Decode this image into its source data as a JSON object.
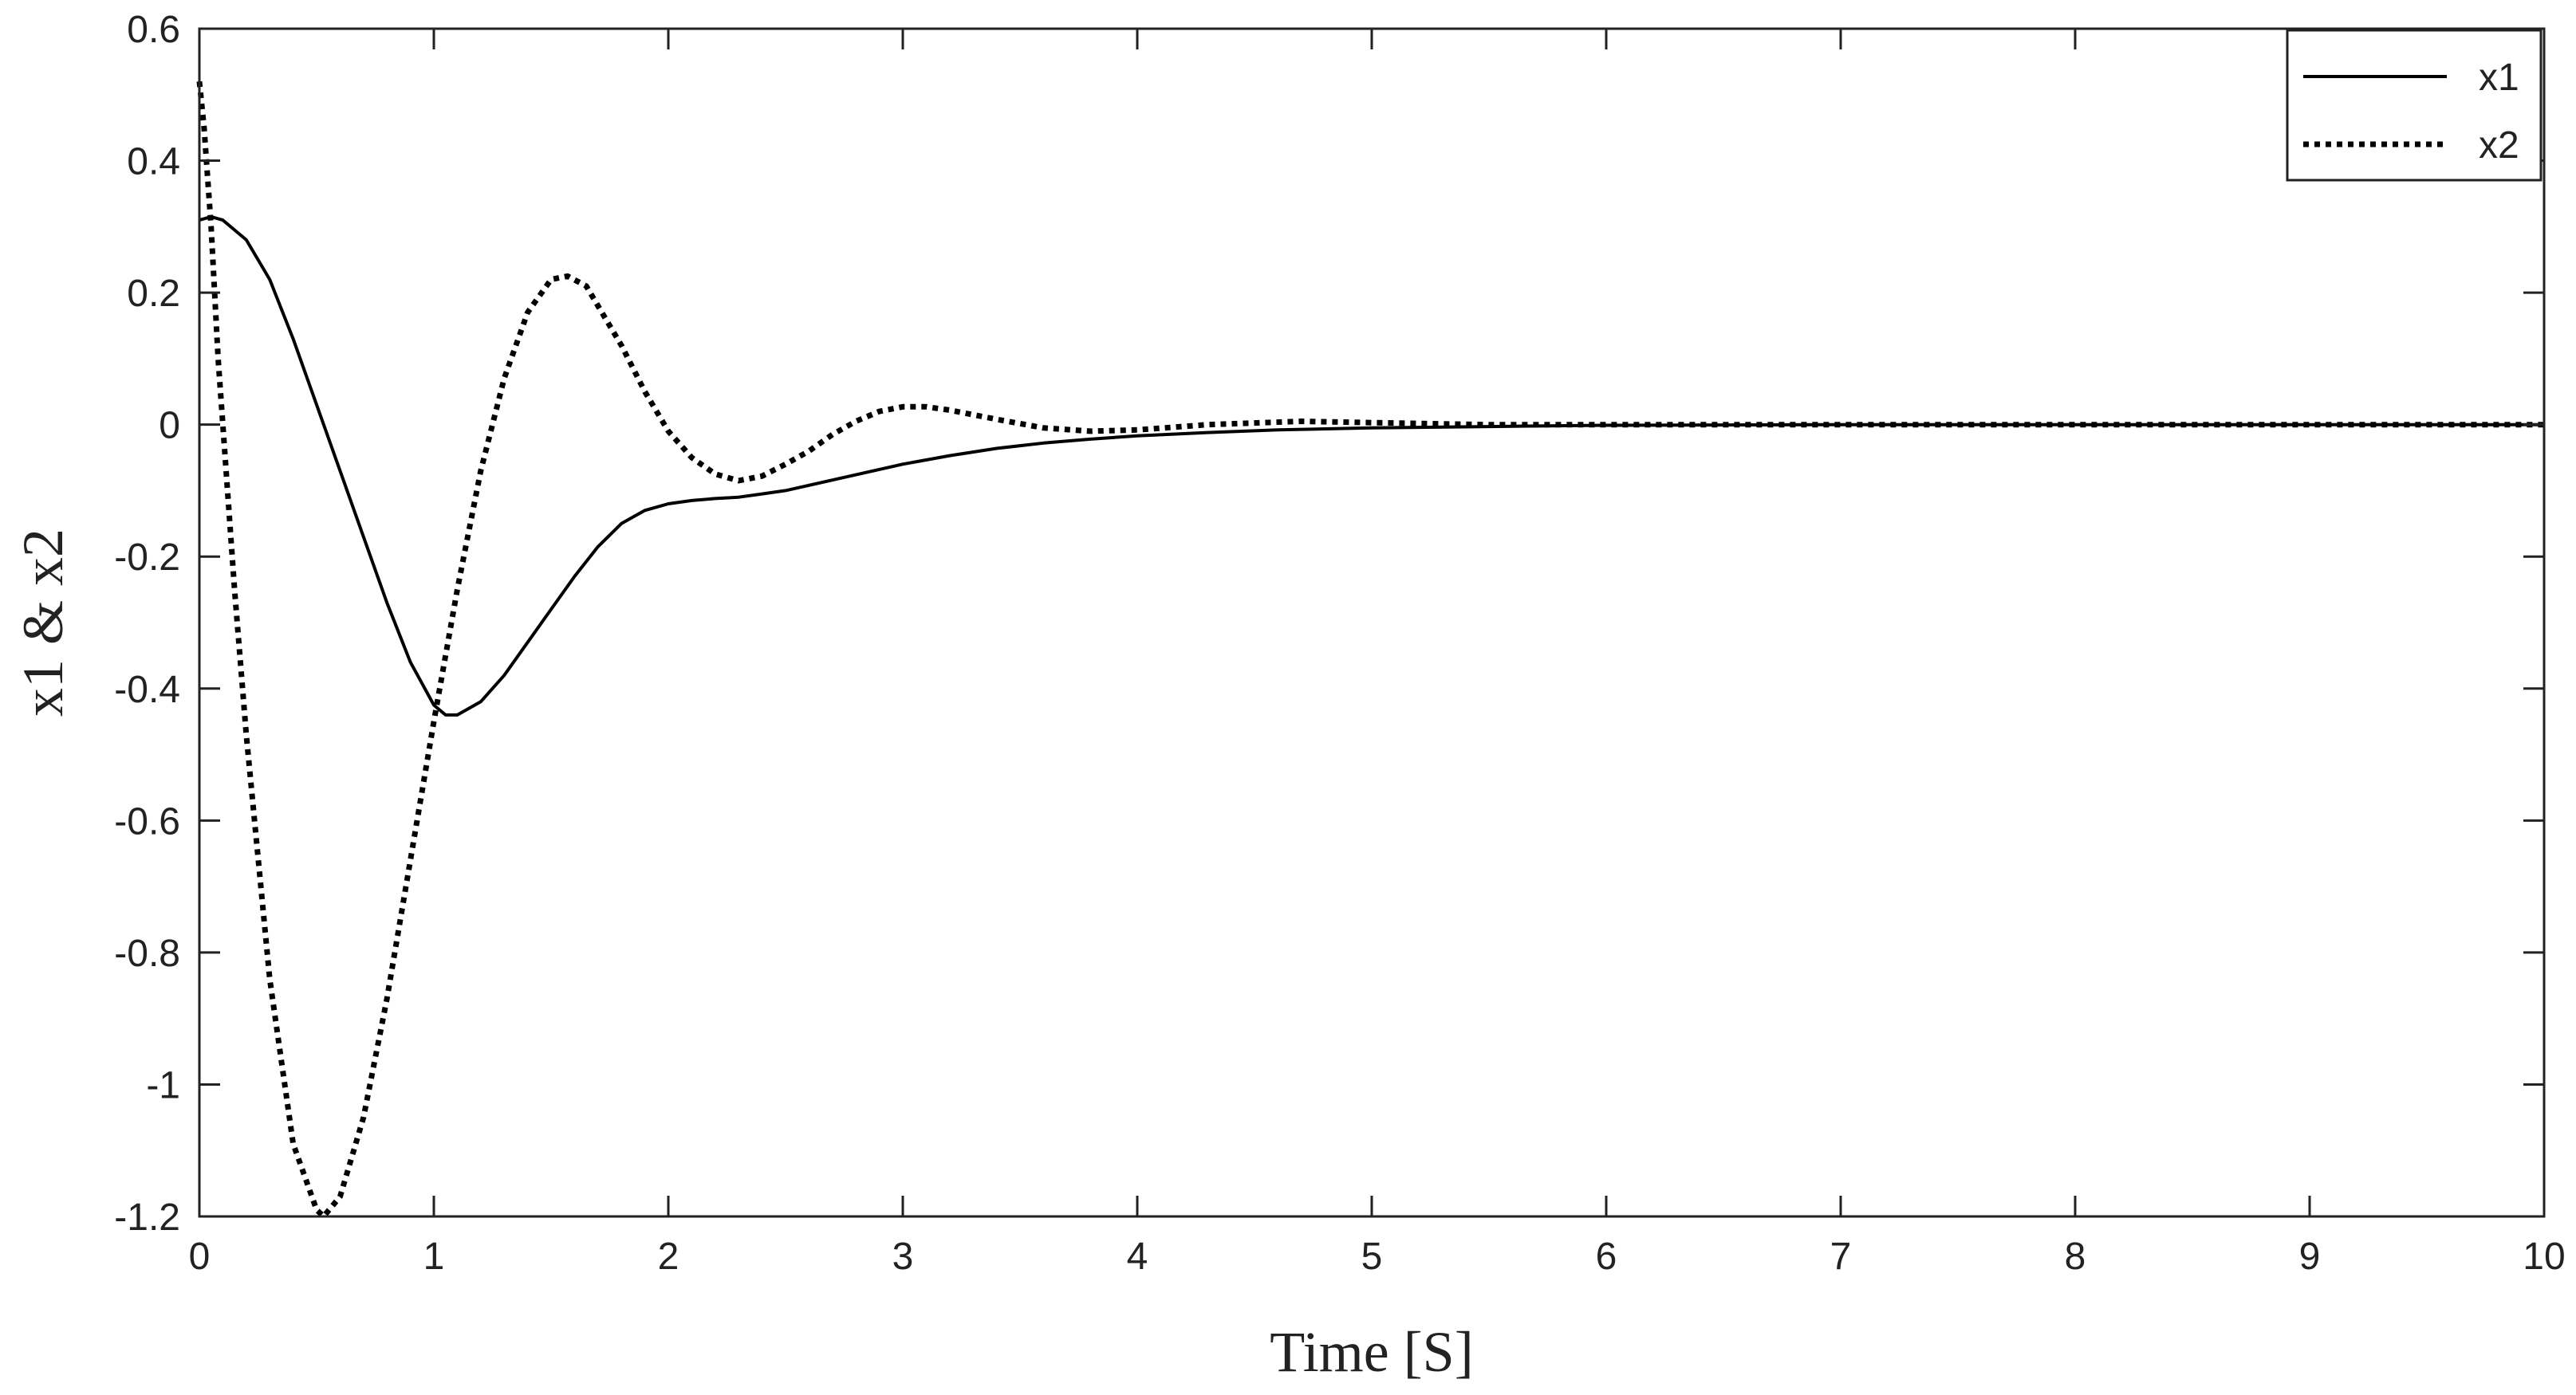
{
  "chart_data": {
    "type": "line",
    "xlabel": "Time [S]",
    "ylabel": "x1 & x2",
    "xlim": [
      0,
      10
    ],
    "ylim": [
      -1.2,
      0.6
    ],
    "xticks": [
      0,
      1,
      2,
      3,
      4,
      5,
      6,
      7,
      8,
      9,
      10
    ],
    "xtick_labels": [
      "0",
      "1",
      "2",
      "3",
      "4",
      "5",
      "6",
      "7",
      "8",
      "9",
      "10"
    ],
    "yticks": [
      0.6,
      0.4,
      0.2,
      0,
      -0.2,
      -0.4,
      -0.6,
      -0.8,
      -1,
      -1.2
    ],
    "ytick_labels": [
      "0.6",
      "0.4",
      "0.2",
      "0",
      "-0.2",
      "-0.4",
      "-0.6",
      "-0.8",
      "-1",
      "-1.2"
    ],
    "grid": false,
    "legend": {
      "placement": "top-right",
      "entries": [
        {
          "label": "x1",
          "style": "solid"
        },
        {
          "label": "x2",
          "style": "dotted"
        }
      ]
    },
    "colors": {
      "line": "#000000",
      "axis": "#222222",
      "background": "#ffffff"
    },
    "series": [
      {
        "name": "x1",
        "style": "solid",
        "x": [
          0,
          0.05,
          0.1,
          0.2,
          0.3,
          0.4,
          0.5,
          0.6,
          0.7,
          0.8,
          0.9,
          1.0,
          1.05,
          1.1,
          1.2,
          1.3,
          1.4,
          1.5,
          1.6,
          1.7,
          1.8,
          1.9,
          2.0,
          2.1,
          2.2,
          2.3,
          2.4,
          2.5,
          2.6,
          2.8,
          3.0,
          3.2,
          3.4,
          3.6,
          3.8,
          4.0,
          4.3,
          4.6,
          5.0,
          5.5,
          6.0,
          7.0,
          8.0,
          9.0,
          10.0
        ],
        "y": [
          0.31,
          0.315,
          0.31,
          0.28,
          0.22,
          0.13,
          0.03,
          -0.07,
          -0.17,
          -0.27,
          -0.36,
          -0.425,
          -0.44,
          -0.44,
          -0.42,
          -0.38,
          -0.33,
          -0.28,
          -0.23,
          -0.185,
          -0.15,
          -0.13,
          -0.12,
          -0.115,
          -0.112,
          -0.11,
          -0.105,
          -0.1,
          -0.092,
          -0.076,
          -0.06,
          -0.047,
          -0.036,
          -0.028,
          -0.022,
          -0.017,
          -0.012,
          -0.008,
          -0.005,
          -0.003,
          -0.001,
          0,
          0,
          0,
          0
        ]
      },
      {
        "name": "x2",
        "style": "dotted",
        "x": [
          0,
          0.02,
          0.05,
          0.08,
          0.1,
          0.15,
          0.2,
          0.3,
          0.4,
          0.5,
          0.53,
          0.6,
          0.7,
          0.8,
          0.9,
          1.0,
          1.1,
          1.2,
          1.3,
          1.4,
          1.5,
          1.57,
          1.65,
          1.7,
          1.8,
          1.9,
          2.0,
          2.1,
          2.2,
          2.3,
          2.4,
          2.5,
          2.6,
          2.7,
          2.8,
          2.9,
          3.0,
          3.1,
          3.2,
          3.4,
          3.6,
          3.8,
          4.0,
          4.3,
          4.7,
          5.0,
          5.5,
          6.0,
          7.0,
          8.0,
          9.0,
          10.0
        ],
        "y": [
          0.52,
          0.45,
          0.3,
          0.1,
          0.0,
          -0.25,
          -0.47,
          -0.84,
          -1.09,
          -1.19,
          -1.2,
          -1.17,
          -1.05,
          -0.87,
          -0.66,
          -0.45,
          -0.25,
          -0.07,
          0.07,
          0.17,
          0.22,
          0.225,
          0.21,
          0.18,
          0.12,
          0.05,
          -0.01,
          -0.05,
          -0.075,
          -0.085,
          -0.078,
          -0.06,
          -0.04,
          -0.015,
          0.005,
          0.02,
          0.027,
          0.027,
          0.022,
          0.008,
          -0.005,
          -0.01,
          -0.008,
          0.0,
          0.005,
          0.003,
          0.0,
          0.0,
          0,
          0,
          0,
          0
        ]
      }
    ]
  }
}
